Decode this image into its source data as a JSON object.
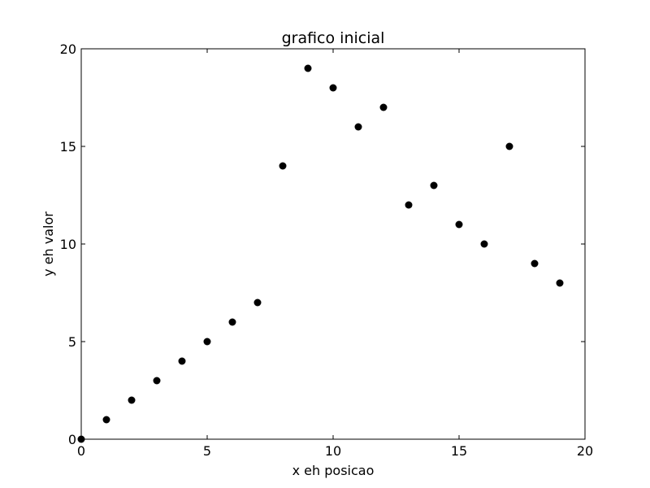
{
  "chart_data": {
    "type": "scatter",
    "title": "grafico inicial",
    "xlabel": "x eh posicao",
    "ylabel": "y eh valor",
    "xlim": [
      0,
      20
    ],
    "ylim": [
      0,
      20
    ],
    "x_ticks": [
      0,
      5,
      10,
      15,
      20
    ],
    "y_ticks": [
      0,
      5,
      10,
      15,
      20
    ],
    "grid": false,
    "marker_color": "#000000",
    "series": [
      {
        "x": [
          0,
          1,
          2,
          3,
          4,
          5,
          6,
          7,
          8,
          9,
          10,
          11,
          12,
          13,
          14,
          15,
          16,
          17,
          18,
          19
        ],
        "y": [
          0,
          1,
          2,
          3,
          4,
          5,
          6,
          7,
          14,
          19,
          18,
          16,
          17,
          12,
          13,
          11,
          10,
          15,
          9,
          8
        ]
      }
    ]
  }
}
